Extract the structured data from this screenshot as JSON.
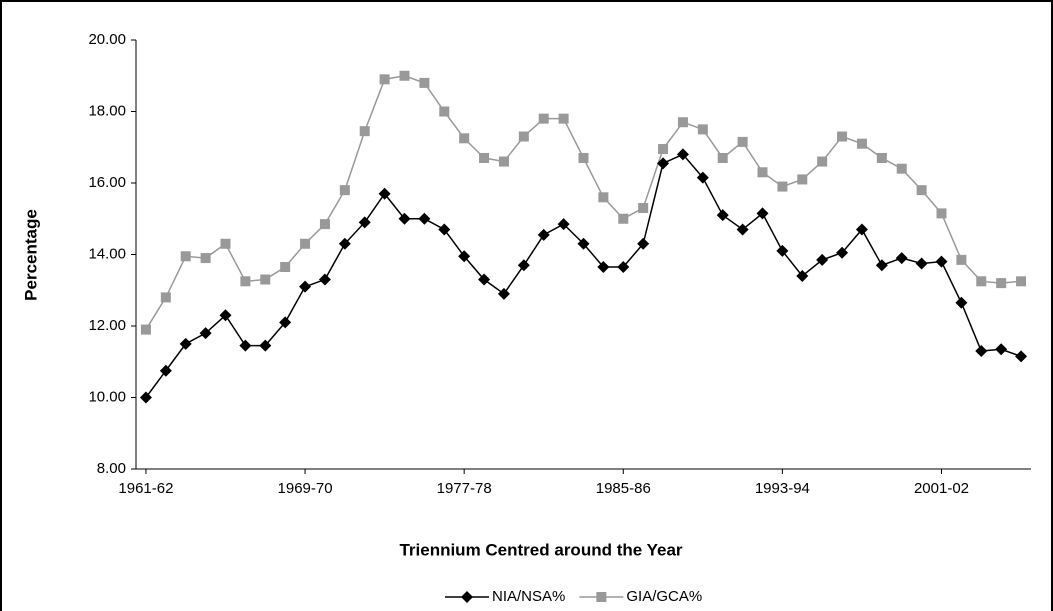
{
  "chart_data": {
    "type": "line",
    "x_label": "Triennium Centred around the Year",
    "y_label": "Percentage",
    "categories": [
      "1961-62",
      null,
      null,
      null,
      null,
      null,
      null,
      null,
      "1969-70",
      null,
      null,
      null,
      null,
      null,
      null,
      null,
      "1977-78",
      null,
      null,
      null,
      null,
      null,
      null,
      null,
      "1985-86",
      null,
      null,
      null,
      null,
      null,
      null,
      null,
      "1993-94",
      null,
      null,
      null,
      null,
      null,
      null,
      null,
      "2001-02",
      null,
      null,
      null,
      null
    ],
    "series": [
      {
        "name": "NIA/NSA%",
        "color": "#000000",
        "marker": "diamond",
        "values": [
          10.0,
          10.75,
          11.5,
          11.8,
          12.3,
          11.45,
          11.45,
          12.1,
          13.1,
          13.3,
          14.3,
          14.9,
          15.7,
          15.0,
          15.0,
          14.7,
          13.95,
          13.3,
          12.9,
          13.7,
          14.55,
          14.85,
          14.3,
          13.65,
          13.65,
          14.3,
          16.55,
          16.8,
          16.15,
          15.1,
          14.7,
          15.15,
          14.1,
          13.4,
          13.85,
          14.05,
          14.7,
          13.7,
          13.9,
          13.75,
          13.8,
          12.65,
          11.3,
          11.35,
          11.15
        ]
      },
      {
        "name": "GIA/GCA%",
        "color": "#999999",
        "marker": "square",
        "values": [
          11.9,
          12.8,
          13.95,
          13.9,
          14.3,
          13.25,
          13.3,
          13.65,
          14.3,
          14.85,
          15.8,
          17.45,
          18.9,
          19.0,
          18.8,
          18.0,
          17.25,
          16.7,
          16.6,
          17.3,
          17.8,
          17.8,
          16.7,
          15.6,
          15.0,
          15.3,
          16.95,
          17.7,
          17.5,
          16.7,
          17.15,
          16.3,
          15.9,
          16.1,
          16.6,
          17.3,
          17.1,
          16.7,
          16.4,
          15.8,
          15.15,
          13.85,
          13.25,
          13.2,
          13.25
        ]
      }
    ],
    "ylim": [
      8,
      20
    ],
    "yticks": [
      {
        "value": 8,
        "label": "8.00"
      },
      {
        "value": 10,
        "label": "10.00"
      },
      {
        "value": 12,
        "label": "12.00"
      },
      {
        "value": 14,
        "label": "14.00"
      },
      {
        "value": 16,
        "label": "16.00"
      },
      {
        "value": 18,
        "label": "18.00"
      },
      {
        "value": 20,
        "label": "20.00"
      }
    ],
    "grid": false,
    "legend": "bottom"
  }
}
